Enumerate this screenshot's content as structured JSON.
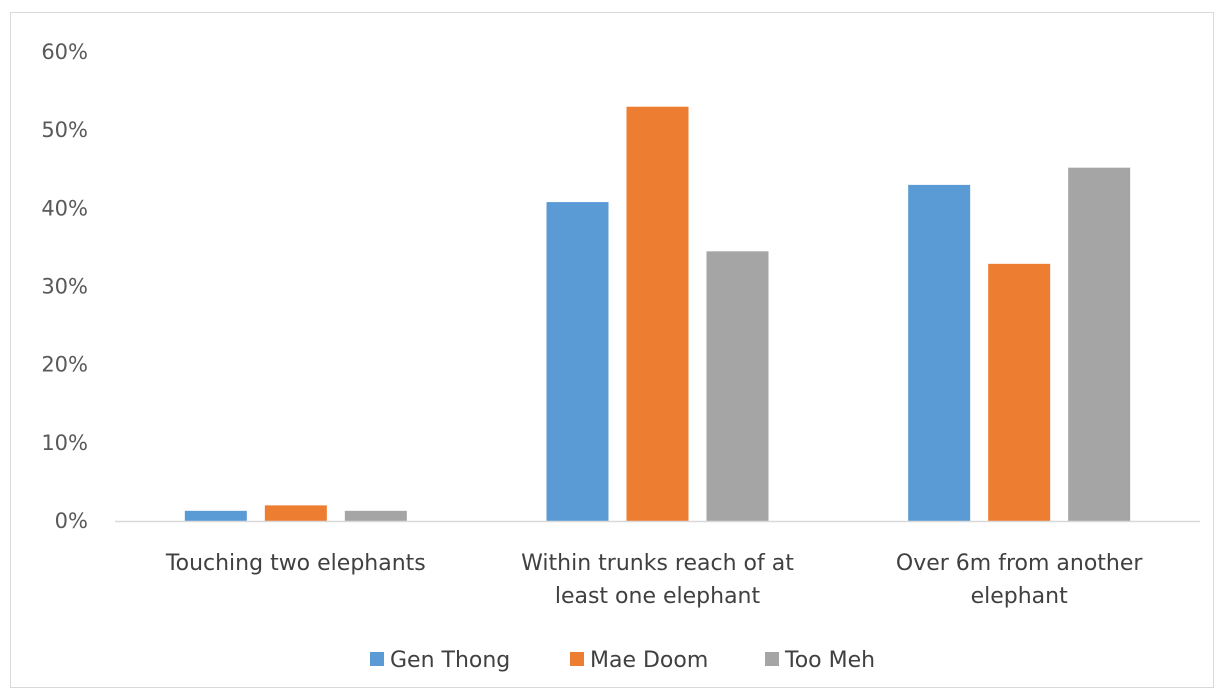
{
  "chart_data": {
    "type": "bar",
    "categories": [
      [
        "Touching two elephants"
      ],
      [
        "Within trunks reach of at",
        "least one elephant"
      ],
      [
        "Over 6m from another",
        "elephant"
      ]
    ],
    "series": [
      {
        "name": "Gen Thong",
        "color": "#5b9bd5",
        "values": [
          1.3,
          40.8,
          43.0
        ]
      },
      {
        "name": "Mae Doom",
        "color": "#ed7d31",
        "values": [
          2.0,
          53.0,
          32.9
        ]
      },
      {
        "name": "Too Meh",
        "color": "#a5a5a5",
        "values": [
          1.3,
          34.5,
          45.2
        ]
      }
    ],
    "yticks": [
      "0%",
      "10%",
      "20%",
      "30%",
      "40%",
      "50%",
      "60%"
    ],
    "ylim": [
      0,
      60
    ],
    "grid": false,
    "legend_position": "bottom",
    "title": "",
    "xlabel": "",
    "ylabel": ""
  }
}
